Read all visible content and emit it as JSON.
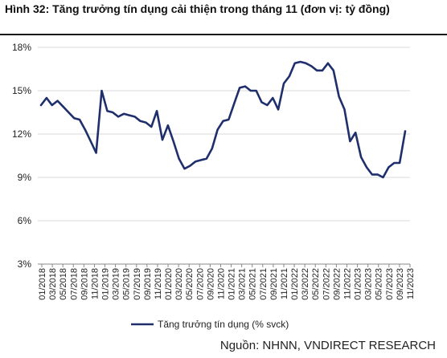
{
  "title": "Hình 32: Tăng trưởng tín dụng cải thiện trong tháng 11 (đơn vị: tỷ đồng)",
  "source": "Nguồn: NHNN, VNDIRECT RESEARCH",
  "colors": {
    "series": "#1f2f6b",
    "grid": "#d9d9d9",
    "axis": "#888888",
    "text": "#222222"
  },
  "chart_data": {
    "type": "line",
    "title": "Hình 32: Tăng trưởng tín dụng cải thiện trong tháng 11 (đơn vị: tỷ đồng)",
    "xlabel": "",
    "ylabel": "",
    "ylim": [
      3,
      18
    ],
    "yticks": [
      "3%",
      "6%",
      "9%",
      "12%",
      "15%",
      "18%"
    ],
    "ytick_values": [
      3,
      6,
      9,
      12,
      15,
      18
    ],
    "grid": "horizontal",
    "legend_position": "bottom",
    "x_tick_labels": [
      "01/2018",
      "03/2018",
      "05/2018",
      "07/2018",
      "09/2018",
      "11/2018",
      "01/2019",
      "03/2019",
      "05/2019",
      "07/2019",
      "09/2019",
      "11/2019",
      "01/2020",
      "03/2020",
      "05/2020",
      "07/2020",
      "09/2020",
      "11/2020",
      "01/2021",
      "03/2021",
      "05/2021",
      "07/2021",
      "09/2021",
      "11/2021",
      "01/2022",
      "03/2022",
      "05/2022",
      "07/2022",
      "09/2022",
      "11/2022",
      "01/2023",
      "03/2023",
      "05/2023",
      "07/2023",
      "09/2023",
      "11/2023"
    ],
    "series": [
      {
        "name": "Tăng trưởng tín dụng (% svck)",
        "values": [
          14.0,
          14.5,
          14.0,
          14.3,
          13.9,
          13.5,
          13.1,
          13.0,
          12.3,
          11.5,
          10.7,
          15.0,
          13.6,
          13.5,
          13.2,
          13.4,
          13.3,
          13.2,
          12.9,
          12.8,
          12.5,
          13.6,
          11.6,
          12.6,
          11.5,
          10.3,
          9.6,
          9.8,
          10.1,
          10.2,
          10.3,
          11.0,
          12.3,
          12.9,
          13.0,
          14.1,
          15.2,
          15.3,
          15.0,
          15.0,
          14.2,
          14.0,
          14.5,
          13.7,
          15.5,
          16.0,
          16.9,
          17.0,
          16.9,
          16.7,
          16.4,
          16.4,
          16.9,
          16.4,
          14.6,
          13.7,
          11.5,
          12.1,
          10.4,
          9.7,
          9.2,
          9.2,
          9.0,
          9.7,
          10.0,
          10.0,
          12.2
        ]
      }
    ]
  }
}
